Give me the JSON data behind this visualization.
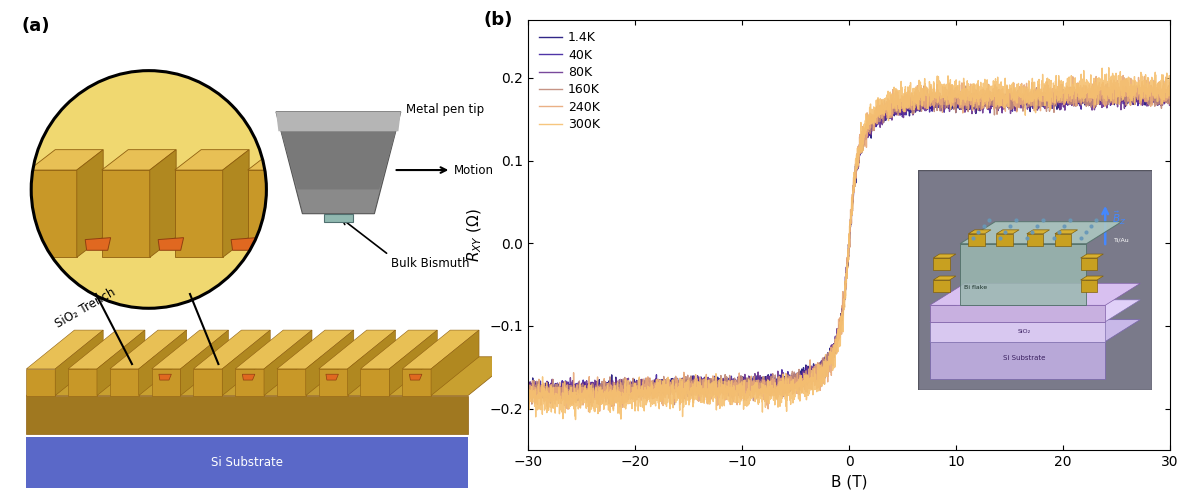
{
  "panel_b": {
    "temperatures": [
      "1.4K",
      "40K",
      "80K",
      "160K",
      "240K",
      "300K"
    ],
    "colors": [
      "#1a0f7a",
      "#3d1f9e",
      "#6b3590",
      "#c08878",
      "#e8a878",
      "#f5c070"
    ],
    "xlabel": "B (T)",
    "xlim": [
      -30,
      30
    ],
    "ylim": [
      -0.25,
      0.27
    ],
    "yticks": [
      -0.2,
      -0.1,
      0.0,
      0.1,
      0.2
    ],
    "xticks": [
      -30,
      -20,
      -10,
      0,
      10,
      20,
      30
    ],
    "noise_amp": [
      0.004,
      0.004,
      0.005,
      0.006,
      0.007,
      0.008
    ],
    "saturation_high": [
      0.178,
      0.178,
      0.179,
      0.181,
      0.185,
      0.19
    ],
    "saturation_low": [
      -0.178,
      -0.178,
      -0.179,
      -0.181,
      -0.185,
      -0.19
    ],
    "transition_sharpness": 0.7
  },
  "schematic": {
    "gold_top": "#e8c055",
    "gold_side": "#c89828",
    "gold_base": "#d4aa40",
    "orange_flake": "#e06820",
    "substrate_color": "#5a68c8",
    "pen_color": "#888888",
    "pen_light": "#aaaaaa",
    "bismuth_piece": "#90b8b0"
  }
}
